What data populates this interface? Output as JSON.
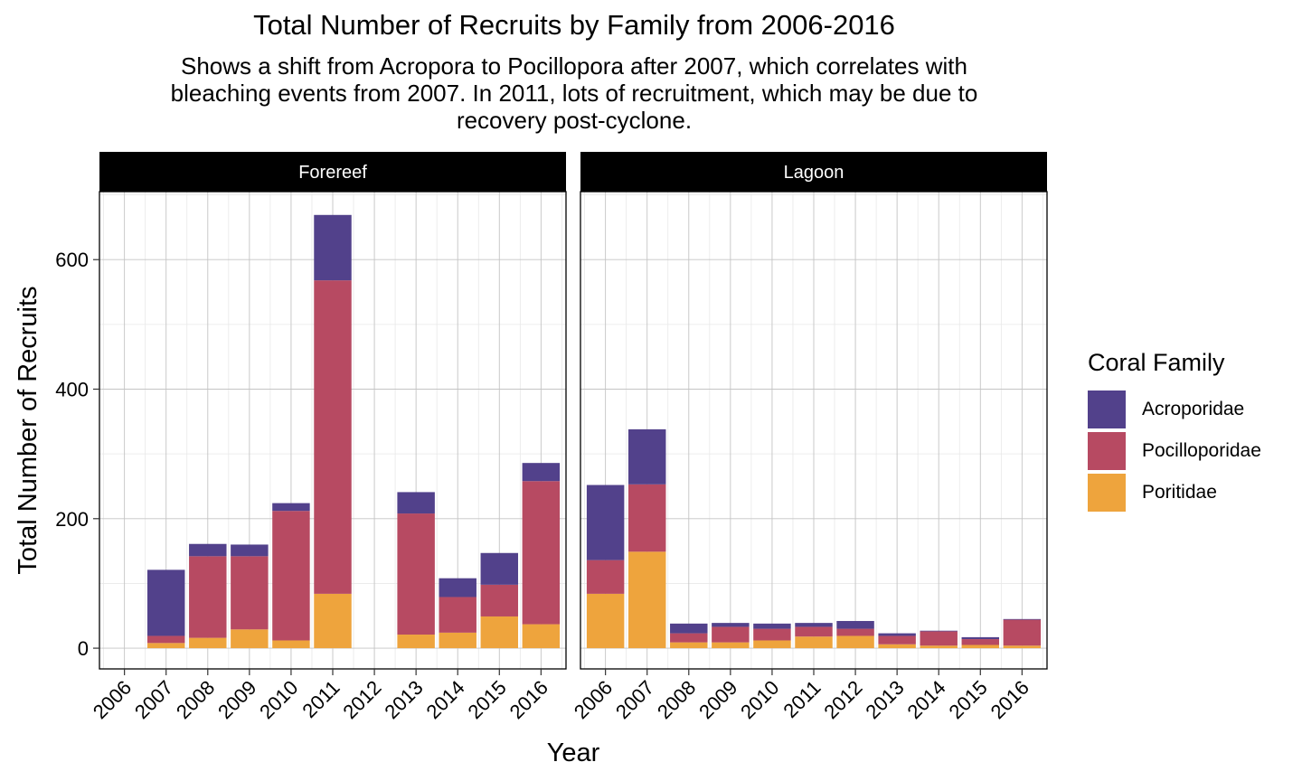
{
  "chart_data": {
    "type": "bar",
    "stacked": true,
    "title": "Total Number of Recruits by Family from 2006-2016",
    "subtitle": "Shows a shift from Acropora to Pocillopora after 2007, which correlates with\nbleaching events from 2007. In 2011, lots of recruitment, which may be due to\nrecovery post-cyclone.",
    "xlabel": "Year",
    "ylabel": "Total Number of Recruits",
    "ylim": [
      -32,
      705
    ],
    "yticks": [
      0,
      200,
      400,
      600
    ],
    "categories": [
      "2006",
      "2007",
      "2008",
      "2009",
      "2010",
      "2011",
      "2012",
      "2013",
      "2014",
      "2015",
      "2016"
    ],
    "legend": {
      "title": "Coral Family",
      "position": "right",
      "entries": [
        "Acroporidae",
        "Pocilloporidae",
        "Poritidae"
      ]
    },
    "colors": {
      "Acroporidae": "#52418b",
      "Pocilloporidae": "#b74a62",
      "Poritidae": "#eea43d"
    },
    "grid": true,
    "panels": [
      {
        "name": "Forereef",
        "series": [
          {
            "name": "Poritidae",
            "values": [
              0,
              8,
              16,
              29,
              12,
              84,
              0,
              21,
              24,
              49,
              37
            ]
          },
          {
            "name": "Pocilloporidae",
            "values": [
              0,
              11,
              126,
              113,
              200,
              484,
              0,
              187,
              55,
              49,
              221
            ]
          },
          {
            "name": "Acroporidae",
            "values": [
              0,
              102,
              19,
              18,
              12,
              101,
              0,
              33,
              29,
              49,
              28
            ]
          }
        ]
      },
      {
        "name": "Lagoon",
        "series": [
          {
            "name": "Poritidae",
            "values": [
              84,
              149,
              9,
              9,
              12,
              18,
              19,
              6,
              4,
              5,
              4
            ]
          },
          {
            "name": "Pocilloporidae",
            "values": [
              52,
              104,
              14,
              24,
              18,
              15,
              11,
              13,
              22,
              9,
              40
            ]
          },
          {
            "name": "Acroporidae",
            "values": [
              116,
              85,
              15,
              6,
              8,
              6,
              12,
              4,
              1,
              3,
              1
            ]
          }
        ]
      }
    ]
  }
}
